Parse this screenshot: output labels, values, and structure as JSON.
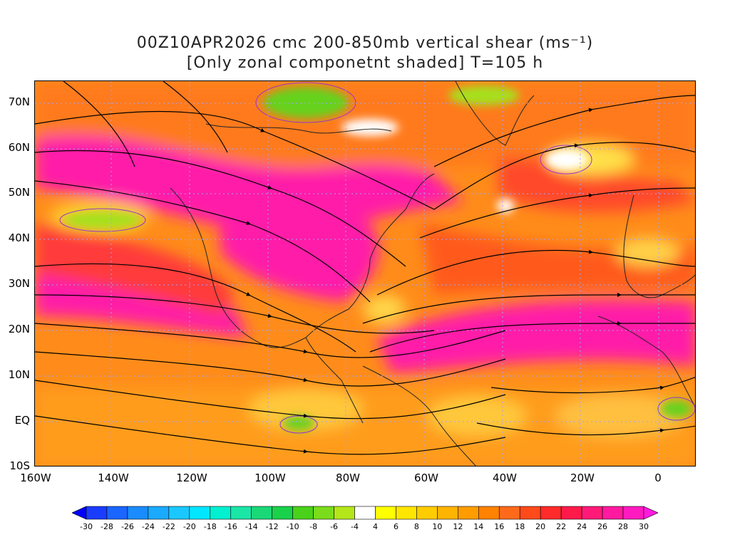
{
  "title": {
    "line1": "00Z10APR2026 cmc 200-850mb vertical shear (ms⁻¹)",
    "line2": "[Only zonal componetnt shaded] T=105 h"
  },
  "map": {
    "lat_labels": [
      "70N",
      "60N",
      "50N",
      "40N",
      "30N",
      "20N",
      "10N",
      "EQ",
      "10S"
    ],
    "lon_labels": [
      "160W",
      "140W",
      "120W",
      "100W",
      "80W",
      "60W",
      "40W",
      "20W",
      "0"
    ],
    "colors": {
      "magenta": "#ff1aa8",
      "deep_pink": "#ff2a80",
      "red": "#ff3a3a",
      "orange_red": "#ff6a1a",
      "orange": "#ff8c1a",
      "light_orange": "#ffb020",
      "yellow": "#ffe000",
      "white": "#ffffff",
      "green": "#66d21a",
      "light_green": "#a6e01a",
      "streamline": "#000000",
      "coast": "#222222",
      "contour": "#9933cc"
    }
  },
  "colorbar": {
    "labels": [
      "-30",
      "-28",
      "-26",
      "-24",
      "-22",
      "-20",
      "-18",
      "-16",
      "-14",
      "-12",
      "-10",
      "-8",
      "-6",
      "-4",
      "4",
      "6",
      "8",
      "10",
      "12",
      "14",
      "16",
      "18",
      "20",
      "22",
      "24",
      "26",
      "28",
      "30"
    ],
    "colors": [
      "#0000ff",
      "#1a3cff",
      "#1a66ff",
      "#1a8cff",
      "#1aaaff",
      "#1ac8ff",
      "#00e6ff",
      "#00f0d0",
      "#1ae6a6",
      "#1ad878",
      "#1ad24a",
      "#4ad21a",
      "#7adc1a",
      "#b4e61a",
      "#ffffff",
      "#ffff00",
      "#ffe600",
      "#ffcc00",
      "#ffb400",
      "#ff9c00",
      "#ff8200",
      "#ff6a1a",
      "#ff4a1a",
      "#ff2a2a",
      "#ff1a4a",
      "#ff1a78",
      "#ff1aa0",
      "#ff1ac0",
      "#ff1ae0"
    ]
  }
}
